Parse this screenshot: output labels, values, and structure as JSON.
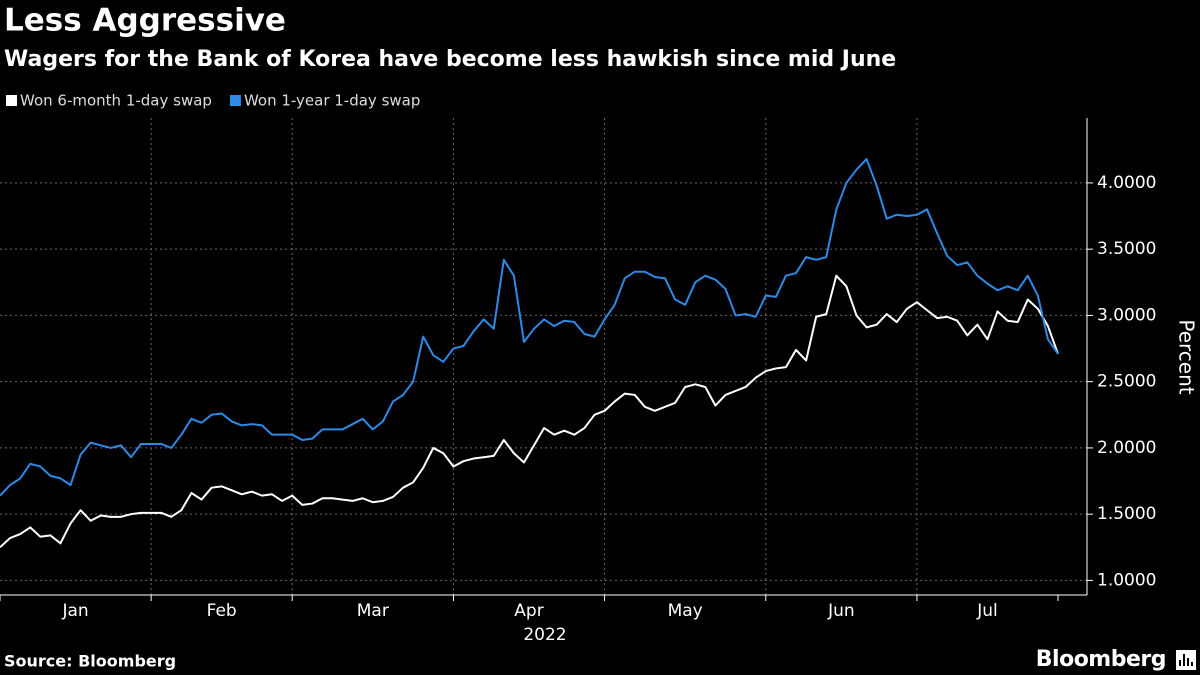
{
  "chart_data": {
    "type": "line",
    "title": "Less Aggressive",
    "subtitle": "Wagers for the Bank of Korea have become less hawkish since mid June",
    "xlabel": "2022",
    "ylabel": "Percent",
    "source": "Source: Bloomberg",
    "logo": "Bloomberg",
    "categories": [
      "Jan",
      null,
      null,
      null,
      null,
      null,
      null,
      null,
      null,
      null,
      null,
      null,
      null,
      null,
      null,
      "Feb",
      null,
      null,
      null,
      null,
      null,
      null,
      null,
      null,
      null,
      null,
      null,
      null,
      null,
      "Mar",
      null,
      null,
      null,
      null,
      null,
      null,
      null,
      null,
      null,
      null,
      null,
      null,
      null,
      null,
      null,
      "Apr",
      null,
      null,
      null,
      null,
      null,
      null,
      null,
      null,
      null,
      null,
      null,
      null,
      null,
      null,
      "May",
      null,
      null,
      null,
      null,
      null,
      null,
      null,
      null,
      null,
      null,
      null,
      null,
      null,
      null,
      null,
      "Jun",
      null,
      null,
      null,
      null,
      null,
      null,
      null,
      null,
      null,
      null,
      null,
      null,
      null,
      null,
      "Jul",
      null,
      null,
      null,
      null,
      null,
      null,
      null,
      null,
      null,
      null,
      null,
      null,
      null,
      null
    ],
    "series": [
      {
        "name": "Won 6-month 1-day swap",
        "color": "#ffffff",
        "values": [
          1.25,
          1.32,
          1.35,
          1.4,
          1.33,
          1.34,
          1.28,
          1.43,
          1.53,
          1.45,
          1.49,
          1.48,
          1.48,
          1.5,
          1.51,
          1.51,
          1.51,
          1.48,
          1.53,
          1.66,
          1.61,
          1.7,
          1.71,
          1.68,
          1.65,
          1.67,
          1.64,
          1.65,
          1.6,
          1.64,
          1.57,
          1.58,
          1.62,
          1.62,
          1.61,
          1.6,
          1.62,
          1.59,
          1.6,
          1.63,
          1.7,
          1.74,
          1.85,
          2.0,
          1.96,
          1.86,
          1.9,
          1.92,
          1.93,
          1.94,
          2.06,
          1.96,
          1.89,
          2.02,
          2.15,
          2.1,
          2.13,
          2.1,
          2.15,
          2.25,
          2.28,
          2.35,
          2.41,
          2.4,
          2.31,
          2.28,
          2.31,
          2.34,
          2.46,
          2.48,
          2.46,
          2.32,
          2.4,
          2.43,
          2.46,
          2.53,
          2.58,
          2.6,
          2.61,
          2.74,
          2.66,
          2.99,
          3.01,
          3.3,
          3.22,
          3.0,
          2.91,
          2.93,
          3.01,
          2.95,
          3.05,
          3.1,
          3.04,
          2.98,
          2.99,
          2.96,
          2.85,
          2.93,
          2.82,
          3.03,
          2.96,
          2.95,
          3.12,
          3.05,
          2.92,
          2.71
        ]
      },
      {
        "name": "Won 1-year 1-day swap",
        "color": "#2f8ae6",
        "values": [
          1.64,
          1.72,
          1.77,
          1.88,
          1.86,
          1.79,
          1.77,
          1.72,
          1.95,
          2.04,
          2.02,
          2.0,
          2.02,
          1.93,
          2.03,
          2.03,
          2.03,
          2.0,
          2.1,
          2.22,
          2.19,
          2.25,
          2.26,
          2.2,
          2.17,
          2.18,
          2.17,
          2.1,
          2.1,
          2.1,
          2.06,
          2.07,
          2.14,
          2.14,
          2.14,
          2.18,
          2.22,
          2.14,
          2.2,
          2.35,
          2.4,
          2.5,
          2.84,
          2.7,
          2.65,
          2.75,
          2.77,
          2.88,
          2.97,
          2.9,
          3.42,
          3.3,
          2.8,
          2.9,
          2.97,
          2.92,
          2.96,
          2.95,
          2.86,
          2.84,
          2.97,
          3.08,
          3.28,
          3.33,
          3.33,
          3.29,
          3.28,
          3.12,
          3.08,
          3.25,
          3.3,
          3.27,
          3.2,
          3.0,
          3.01,
          2.99,
          3.15,
          3.14,
          3.3,
          3.32,
          3.44,
          3.42,
          3.44,
          3.8,
          4.0,
          4.1,
          4.18,
          3.98,
          3.73,
          3.76,
          3.75,
          3.76,
          3.8,
          3.62,
          3.45,
          3.38,
          3.4,
          3.3,
          3.24,
          3.19,
          3.22,
          3.19,
          3.3,
          3.15,
          2.82,
          2.71
        ]
      }
    ],
    "ylim": [
      0.89,
      4.49
    ],
    "yticks": [
      {
        "value": 1,
        "label": "1.0000"
      },
      {
        "value": 1.5,
        "label": "1.5000"
      },
      {
        "value": 2,
        "label": "2.0000"
      },
      {
        "value": 2.5,
        "label": "2.5000"
      },
      {
        "value": 3,
        "label": "3.0000"
      },
      {
        "value": 3.5,
        "label": "3.5000"
      },
      {
        "value": 4,
        "label": "4.0000"
      }
    ],
    "grid": true,
    "legend": "top-left"
  }
}
